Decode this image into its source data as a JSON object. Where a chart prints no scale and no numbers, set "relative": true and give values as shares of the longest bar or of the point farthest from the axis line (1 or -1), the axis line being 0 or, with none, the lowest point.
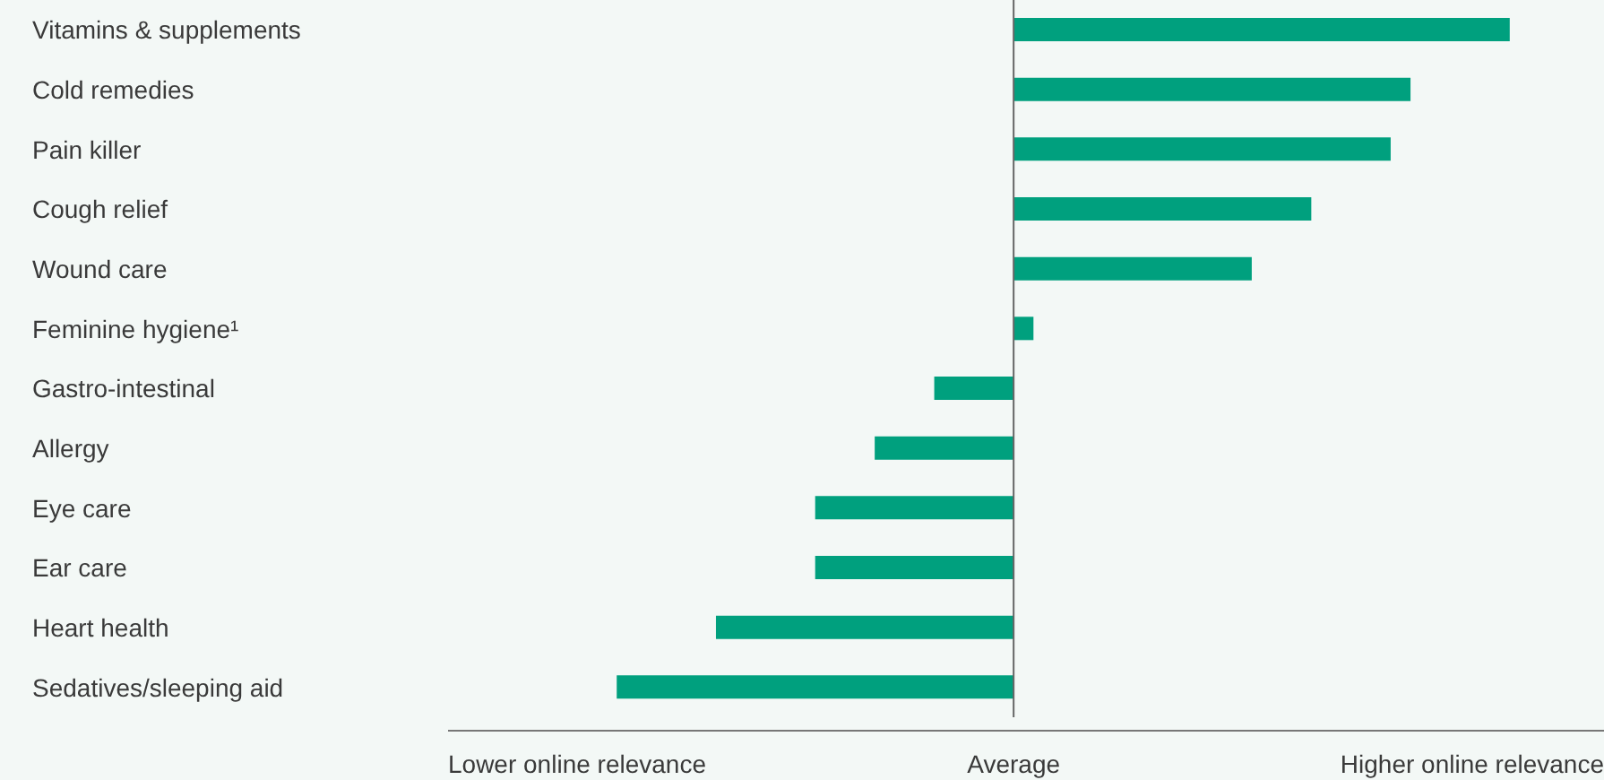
{
  "chart_data": {
    "type": "bar",
    "orientation": "horizontal",
    "relative": true,
    "categories": [
      "Vitamins & supplements",
      "Cold remedies",
      "Pain killer",
      "Cough relief",
      "Wound care",
      "Feminine hygiene¹",
      "Gastro-intestinal",
      "Allergy",
      "Eye care",
      "Ear care",
      "Heart health",
      "Sedatives/sleeping aid"
    ],
    "values": [
      1,
      0.8,
      0.76,
      0.6,
      0.48,
      0.04,
      -0.16,
      -0.28,
      -0.4,
      -0.4,
      -0.6,
      -0.8
    ],
    "color": "#00a07e",
    "annotations": [
      "Lower online relevance",
      "Average",
      "Higher online relevance"
    ]
  }
}
